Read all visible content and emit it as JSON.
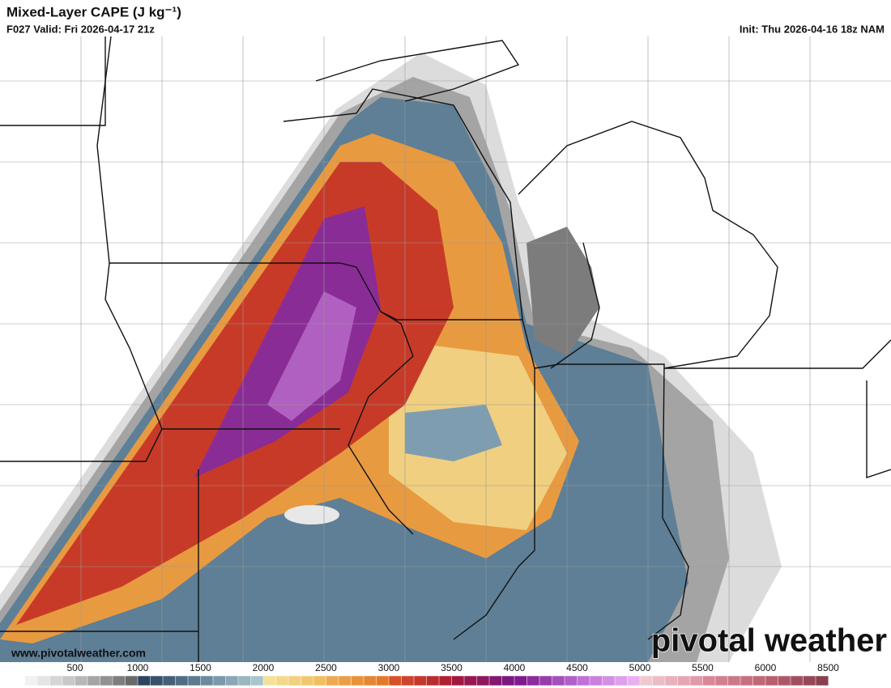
{
  "header": {
    "title": "Mixed-Layer CAPE (J kg⁻¹)",
    "valid": "F027 Valid: Fri 2026-04-17 21z",
    "init": "Init: Thu 2026-04-16 18z NAM"
  },
  "footer": {
    "website": "www.pivotalweather.com",
    "logo": "pivotal weather"
  },
  "colorbar": {
    "ticks": [
      500,
      1000,
      1500,
      2000,
      2500,
      3000,
      3500,
      4000,
      4500,
      5000,
      5500,
      6000,
      8500
    ],
    "segments": [
      [
        "#ffffff",
        "#c8c8c8"
      ],
      [
        "#b8b8b8",
        "#6a6a6a"
      ],
      [
        "#2c4560",
        "#5a7a90"
      ],
      [
        "#6a8aa0",
        "#a8c4cc"
      ],
      [
        "#f4e09a",
        "#f0c060"
      ],
      [
        "#eeaa50",
        "#e47a28"
      ],
      [
        "#d8502a",
        "#b02030"
      ],
      [
        "#a01840",
        "#7a1880"
      ],
      [
        "#801a90",
        "#b060c8"
      ],
      [
        "#c070d8",
        "#e8b0f0"
      ],
      [
        "#f0c8d0",
        "#e09aa8"
      ],
      [
        "#d88898",
        "#c06878"
      ],
      [
        "#b86070",
        "#8a4050"
      ]
    ]
  }
}
